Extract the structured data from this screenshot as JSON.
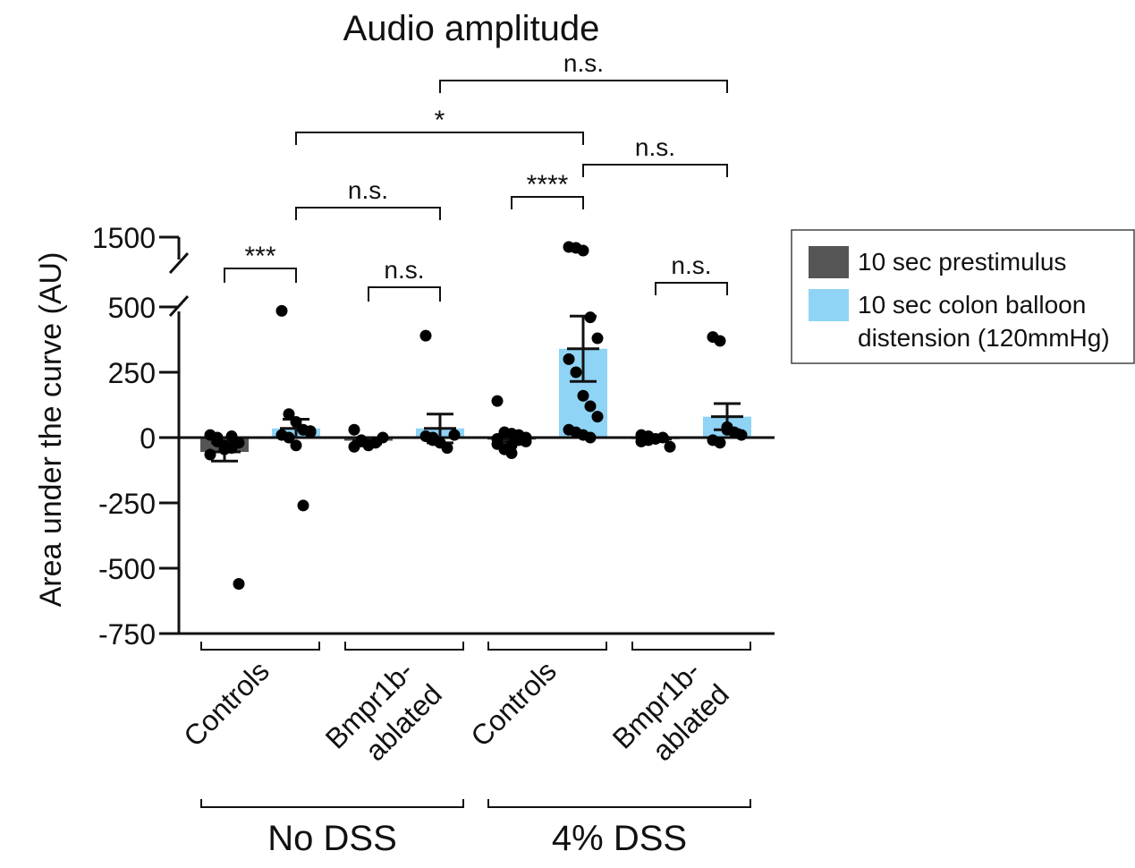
{
  "chart_data": {
    "type": "bar",
    "title": "Audio amplitude",
    "ylabel": "Area under the curve (AU)",
    "y_axis": {
      "lower_segment": {
        "range": [
          -750,
          500
        ],
        "ticks": [
          -750,
          -500,
          -250,
          0,
          250,
          500
        ]
      },
      "upper_segment": {
        "ticks": [
          1500
        ]
      },
      "axis_break": "between 500 and 1500"
    },
    "tick_labels": {
      "1500": "1500",
      "500": "500",
      "250": "250",
      "0": "0",
      "-250": "-250",
      "-500": "-500",
      "-750": "-750"
    },
    "categories": [
      {
        "label_lines": [
          "Controls"
        ],
        "group": "No DSS"
      },
      {
        "label_lines": [
          "Bmpr1b-",
          "ablated"
        ],
        "group": "No DSS"
      },
      {
        "label_lines": [
          "Controls"
        ],
        "group": "4% DSS"
      },
      {
        "label_lines": [
          "Bmpr1b-",
          "ablated"
        ],
        "group": "4% DSS"
      }
    ],
    "groups": [
      {
        "label": "No DSS",
        "categories": [
          0,
          1
        ]
      },
      {
        "label": "4% DSS",
        "categories": [
          2,
          3
        ]
      }
    ],
    "series": [
      {
        "name": "10 sec prestimulus",
        "color": "#555555",
        "means": [
          -55,
          -12,
          -8,
          -6
        ],
        "sem": [
          35,
          12,
          10,
          8
        ],
        "points": [
          [
            10,
            -15,
            -45,
            -40,
            -20,
            -65,
            0,
            -30,
            5,
            -560
          ],
          [
            30,
            -10,
            -30,
            -20,
            0,
            -35,
            -15
          ],
          [
            140,
            20,
            15,
            -10,
            0,
            -25,
            -45,
            -60,
            10,
            -15,
            -5,
            20,
            -30
          ],
          [
            10,
            -10,
            -5,
            0,
            -35,
            -15,
            5
          ]
        ]
      },
      {
        "name": "10 sec colon balloon distension (120mmHg)",
        "color": "#8fd4f5",
        "means": [
          35,
          35,
          340,
          80
        ],
        "sem": [
          35,
          55,
          125,
          50
        ],
        "points": [
          [
            485,
            90,
            60,
            30,
            20,
            10,
            0,
            -30,
            -260,
            25
          ],
          [
            390,
            0,
            -20,
            -40,
            10,
            5,
            -10
          ],
          [
            1390,
            1380,
            1350,
            460,
            380,
            300,
            250,
            160,
            120,
            80,
            30,
            20,
            10,
            0
          ],
          [
            385,
            370,
            30,
            20,
            10,
            -10,
            -20,
            40
          ]
        ]
      }
    ],
    "significance": [
      {
        "label": "***",
        "between": [
          [
            0,
            0
          ],
          [
            0,
            1
          ]
        ]
      },
      {
        "label": "n.s.",
        "between": [
          [
            1,
            0
          ],
          [
            1,
            1
          ]
        ]
      },
      {
        "label": "n.s.",
        "between": [
          [
            0,
            1
          ],
          [
            1,
            1
          ]
        ]
      },
      {
        "label": "****",
        "between": [
          [
            2,
            0
          ],
          [
            2,
            1
          ]
        ]
      },
      {
        "label": "n.s.",
        "between": [
          [
            3,
            0
          ],
          [
            3,
            1
          ]
        ]
      },
      {
        "label": "*",
        "between": [
          [
            0,
            1
          ],
          [
            2,
            1
          ]
        ]
      },
      {
        "label": "n.s.",
        "between": [
          [
            2,
            1
          ],
          [
            3,
            1
          ]
        ]
      },
      {
        "label": "n.s.",
        "between": [
          [
            1,
            1
          ],
          [
            3,
            1
          ]
        ]
      }
    ],
    "legend": {
      "placement": "right",
      "entries": [
        {
          "lines": [
            "10 sec prestimulus"
          ],
          "color": "#555555"
        },
        {
          "lines": [
            "10 sec colon balloon",
            "distension (120mmHg)"
          ],
          "color": "#8fd4f5"
        }
      ]
    }
  }
}
